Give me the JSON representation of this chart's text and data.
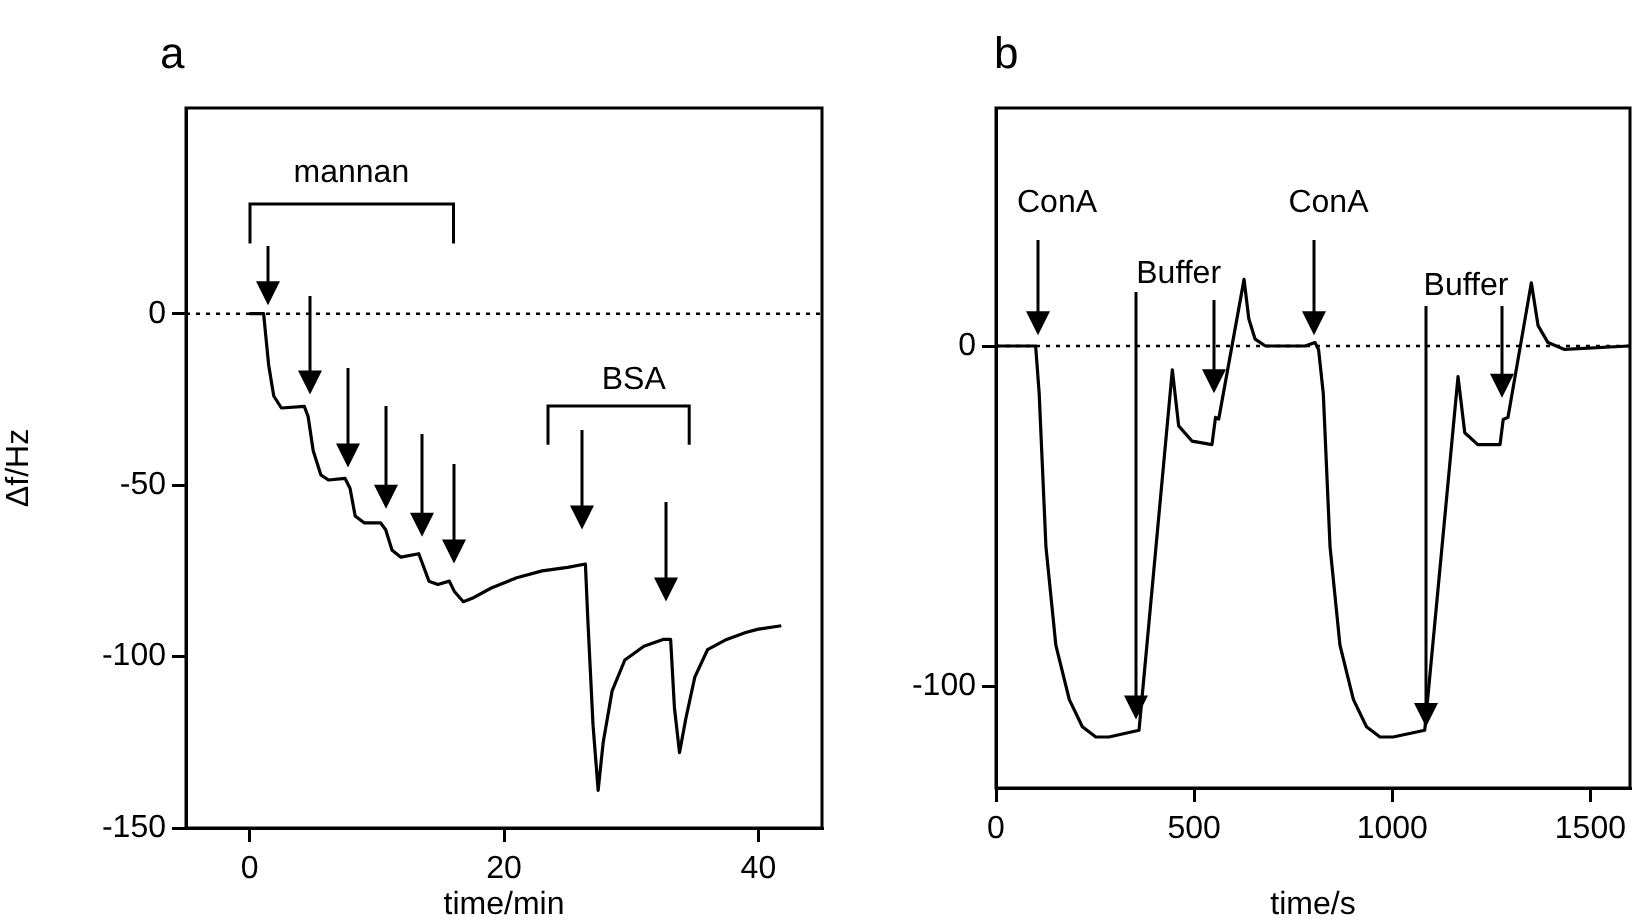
{
  "chart_data": [
    {
      "type": "line",
      "title": "a",
      "xlabel": "time/min",
      "ylabel": "Δf/Hz",
      "xlim": [
        -5,
        45
      ],
      "ylim": [
        -150,
        60
      ],
      "xticks": [
        0,
        20,
        40
      ],
      "yticks": [
        0,
        -50,
        -100,
        -150
      ],
      "grid": false,
      "legend": false,
      "marker": "none",
      "ref_lines": [
        {
          "axis": "y",
          "value": 0,
          "line_style": "dotted"
        }
      ],
      "annotations": [
        "mannan",
        "BSA"
      ],
      "series": [
        {
          "color": "#000000",
          "x": [
            0,
            1.1,
            1.5,
            1.9,
            2.5,
            4.3,
            4.6,
            5.0,
            5.6,
            6.2,
            7.5,
            7.9,
            8.3,
            9.0,
            10.3,
            10.7,
            11.2,
            11.9,
            13.3,
            13.6,
            14.1,
            14.8,
            15.7,
            16.1,
            16.8,
            17.5,
            19,
            21,
            23,
            25,
            26.4,
            26.6,
            27.0,
            27.4,
            27.8,
            28.5,
            29.5,
            31,
            32.5,
            33.1,
            33.4,
            33.8,
            34.3,
            35,
            36,
            37.5,
            39,
            40,
            41.8
          ],
          "values": [
            0,
            0,
            -15,
            -24,
            -27.5,
            -27,
            -30,
            -40,
            -47,
            -48.5,
            -48,
            -51,
            -59,
            -61,
            -61,
            -63,
            -69,
            -71,
            -70,
            -73,
            -78,
            -79,
            -78,
            -81,
            -84,
            -83,
            -80,
            -77,
            -75,
            -74,
            -73,
            -90,
            -120,
            -139,
            -125,
            -110,
            -101,
            -97,
            -95,
            -95,
            -115,
            -128,
            -118,
            -106,
            -98,
            -95,
            -93,
            -92,
            -91
          ]
        }
      ]
    },
    {
      "type": "line",
      "title": "b",
      "xlabel": "time/s",
      "xlim": [
        0,
        1600
      ],
      "ylim": [
        -130,
        70
      ],
      "xticks": [
        0,
        500,
        1000,
        1500
      ],
      "yticks": [
        0,
        -100
      ],
      "grid": false,
      "legend": false,
      "marker": "none",
      "ref_lines": [
        {
          "axis": "y",
          "value": 0,
          "line_style": "dotted"
        }
      ],
      "annotations": [
        "ConA",
        "Buffer",
        "ConA",
        "Buffer"
      ],
      "series": [
        {
          "color": "#000000",
          "x": [
            0,
            100,
            109,
            126,
            151,
            185,
            218,
            252,
            285,
            361,
            445,
            461,
            495,
            545,
            554,
            562,
            626,
            638,
            654,
            680,
            780,
            805,
            814,
            826,
            843,
            868,
            902,
            935,
            969,
            1002,
            1082,
            1166,
            1183,
            1216,
            1272,
            1280,
            1292,
            1351,
            1368,
            1393,
            1435,
            1597
          ],
          "values": [
            0,
            0,
            -14,
            -59,
            -88,
            -104,
            -112,
            -115,
            -115,
            -113,
            -7,
            -23.5,
            -28,
            -29,
            -21,
            -21.5,
            19.6,
            8,
            2,
            0,
            0,
            1,
            -1,
            -14,
            -59,
            -88,
            -104,
            -112,
            -115,
            -115,
            -113,
            -9,
            -25.5,
            -29,
            -29,
            -21.6,
            -21,
            18.6,
            6,
            1,
            -1,
            0
          ]
        }
      ]
    }
  ]
}
